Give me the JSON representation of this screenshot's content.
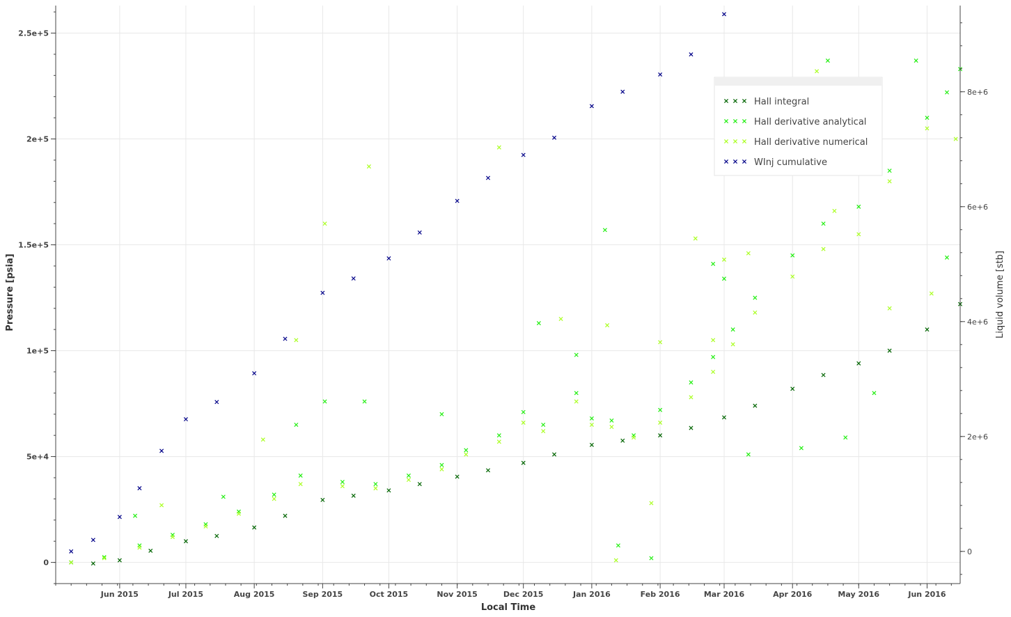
{
  "chart_data": {
    "type": "scatter",
    "xlabel": "Local Time",
    "ylabel": "Pressure [psia]",
    "y2label": "Liquid volume [stb]",
    "x_range": [
      "2015-05-03",
      "2016-06-16"
    ],
    "ylim": [
      -10000,
      263000
    ],
    "y2lim": [
      -560000,
      9500000
    ],
    "x_ticks": [
      "2015-06-01",
      "2015-07-01",
      "2015-08-01",
      "2015-09-01",
      "2015-10-01",
      "2015-11-01",
      "2015-12-01",
      "2016-01-01",
      "2016-02-01",
      "2016-03-01",
      "2016-04-01",
      "2016-05-01",
      "2016-06-01"
    ],
    "x_tick_labels": [
      "Jun 2015",
      "Jul 2015",
      "Aug 2015",
      "Sep 2015",
      "Oct 2015",
      "Nov 2015",
      "Dec 2015",
      "Jan 2016",
      "Feb 2016",
      "Mar 2016",
      "Apr 2016",
      "May 2016",
      "Jun 2016"
    ],
    "y_ticks": [
      0,
      50000,
      100000,
      150000,
      200000,
      250000
    ],
    "y_tick_labels": [
      "0",
      "5e+4",
      "1e+5",
      "1.5e+5",
      "2e+5",
      "2.5e+5"
    ],
    "y2_ticks": [
      0,
      2000000,
      4000000,
      6000000,
      8000000
    ],
    "y2_tick_labels": [
      "0",
      "2e+6",
      "4e+6",
      "6e+6",
      "8e+6"
    ],
    "grid": true,
    "legend_position": "top-right",
    "series": [
      {
        "name": "Hall integral",
        "axis": "left",
        "color": "#006400",
        "marker": "x",
        "points": [
          [
            "2015-05-10",
            0
          ],
          [
            "2015-05-20",
            -500
          ],
          [
            "2015-06-01",
            1000
          ],
          [
            "2015-06-15",
            5500
          ],
          [
            "2015-07-01",
            10000
          ],
          [
            "2015-07-15",
            12500
          ],
          [
            "2015-08-01",
            16500
          ],
          [
            "2015-08-15",
            22000
          ],
          [
            "2015-09-01",
            29500
          ],
          [
            "2015-09-15",
            31500
          ],
          [
            "2015-10-01",
            34000
          ],
          [
            "2015-10-15",
            37000
          ],
          [
            "2015-11-01",
            40500
          ],
          [
            "2015-11-15",
            43500
          ],
          [
            "2015-12-01",
            47000
          ],
          [
            "2015-12-15",
            51000
          ],
          [
            "2016-01-01",
            55500
          ],
          [
            "2016-01-15",
            57500
          ],
          [
            "2016-02-01",
            60000
          ],
          [
            "2016-02-15",
            63500
          ],
          [
            "2016-03-01",
            68500
          ],
          [
            "2016-03-15",
            74000
          ],
          [
            "2016-04-01",
            82000
          ],
          [
            "2016-04-15",
            88500
          ],
          [
            "2016-05-01",
            94000
          ],
          [
            "2016-05-15",
            100000
          ],
          [
            "2016-06-01",
            110000
          ],
          [
            "2016-06-16",
            122000
          ]
        ]
      },
      {
        "name": "Hall derivative analytical",
        "axis": "left",
        "color": "#22ee11",
        "marker": "x",
        "points": [
          [
            "2015-05-10",
            0
          ],
          [
            "2015-05-25",
            2500
          ],
          [
            "2015-06-10",
            8000
          ],
          [
            "2015-06-25",
            13000
          ],
          [
            "2015-07-10",
            18000
          ],
          [
            "2015-07-25",
            24000
          ],
          [
            "2015-08-10",
            32000
          ],
          [
            "2015-08-22",
            41000
          ],
          [
            "2015-09-10",
            38000
          ],
          [
            "2015-09-25",
            37000
          ],
          [
            "2015-10-10",
            41000
          ],
          [
            "2015-10-25",
            46000
          ],
          [
            "2015-11-05",
            53000
          ],
          [
            "2015-11-20",
            60000
          ],
          [
            "2015-12-01",
            71000
          ],
          [
            "2015-12-10",
            65000
          ],
          [
            "2015-12-25",
            80000
          ],
          [
            "2016-01-01",
            68000
          ],
          [
            "2016-01-10",
            67000
          ],
          [
            "2016-01-20",
            60000
          ],
          [
            "2016-02-01",
            72000
          ],
          [
            "2016-02-15",
            85000
          ],
          [
            "2016-02-25",
            97000
          ],
          [
            "2016-03-05",
            110000
          ],
          [
            "2016-03-15",
            125000
          ],
          [
            "2016-04-01",
            145000
          ],
          [
            "2016-04-15",
            160000
          ],
          [
            "2016-05-01",
            168000
          ],
          [
            "2016-05-15",
            185000
          ],
          [
            "2016-06-01",
            210000
          ],
          [
            "2016-06-10",
            222000
          ],
          [
            "2015-06-08",
            22000
          ],
          [
            "2015-07-18",
            31000
          ],
          [
            "2015-08-20",
            65000
          ],
          [
            "2015-09-02",
            76000
          ],
          [
            "2015-09-20",
            76000
          ],
          [
            "2015-10-25",
            70000
          ],
          [
            "2015-12-08",
            113000
          ],
          [
            "2015-12-25",
            98000
          ],
          [
            "2016-01-07",
            157000
          ],
          [
            "2016-01-13",
            8000
          ],
          [
            "2016-01-28",
            2000
          ],
          [
            "2016-02-25",
            141000
          ],
          [
            "2016-03-01",
            134000
          ],
          [
            "2016-03-12",
            51000
          ],
          [
            "2016-04-05",
            54000
          ],
          [
            "2016-04-17",
            237000
          ],
          [
            "2016-04-25",
            59000
          ],
          [
            "2016-05-08",
            80000
          ],
          [
            "2016-05-27",
            237000
          ],
          [
            "2016-06-10",
            144000
          ],
          [
            "2016-06-16",
            233000
          ]
        ]
      },
      {
        "name": "Hall derivative numerical",
        "axis": "left",
        "color": "#aaff22",
        "marker": "x",
        "points": [
          [
            "2015-05-10",
            0
          ],
          [
            "2015-05-25",
            2000
          ],
          [
            "2015-06-10",
            7000
          ],
          [
            "2015-06-25",
            12000
          ],
          [
            "2015-07-10",
            17000
          ],
          [
            "2015-07-25",
            23000
          ],
          [
            "2015-08-10",
            30000
          ],
          [
            "2015-08-22",
            37000
          ],
          [
            "2015-09-10",
            36000
          ],
          [
            "2015-09-25",
            35000
          ],
          [
            "2015-10-10",
            39000
          ],
          [
            "2015-10-25",
            44000
          ],
          [
            "2015-11-05",
            51000
          ],
          [
            "2015-11-20",
            57000
          ],
          [
            "2015-12-01",
            66000
          ],
          [
            "2015-12-10",
            62000
          ],
          [
            "2015-12-25",
            76000
          ],
          [
            "2016-01-01",
            65000
          ],
          [
            "2016-01-10",
            64000
          ],
          [
            "2016-01-20",
            59000
          ],
          [
            "2016-02-01",
            66000
          ],
          [
            "2016-02-15",
            78000
          ],
          [
            "2016-02-25",
            90000
          ],
          [
            "2016-03-05",
            103000
          ],
          [
            "2016-03-15",
            118000
          ],
          [
            "2016-04-01",
            135000
          ],
          [
            "2016-04-15",
            148000
          ],
          [
            "2016-05-01",
            155000
          ],
          [
            "2016-05-15",
            180000
          ],
          [
            "2016-06-01",
            205000
          ],
          [
            "2016-06-14",
            200000
          ],
          [
            "2015-06-20",
            27000
          ],
          [
            "2015-08-05",
            58000
          ],
          [
            "2015-08-20",
            105000
          ],
          [
            "2015-09-02",
            160000
          ],
          [
            "2015-09-22",
            187000
          ],
          [
            "2015-11-20",
            196000
          ],
          [
            "2015-12-18",
            115000
          ],
          [
            "2016-01-08",
            112000
          ],
          [
            "2016-01-12",
            1000
          ],
          [
            "2016-01-28",
            28000
          ],
          [
            "2016-02-01",
            104000
          ],
          [
            "2016-02-17",
            153000
          ],
          [
            "2016-02-25",
            105000
          ],
          [
            "2016-03-01",
            143000
          ],
          [
            "2016-03-12",
            146000
          ],
          [
            "2016-04-12",
            232000
          ],
          [
            "2016-04-20",
            166000
          ],
          [
            "2016-05-15",
            120000
          ],
          [
            "2016-06-03",
            127000
          ]
        ]
      },
      {
        "name": "WInj cumulative",
        "axis": "right",
        "color": "#000088",
        "marker": "x",
        "points": [
          [
            "2015-05-10",
            0
          ],
          [
            "2015-05-20",
            200000
          ],
          [
            "2015-06-01",
            600000
          ],
          [
            "2015-06-10",
            1100000
          ],
          [
            "2015-06-20",
            1750000
          ],
          [
            "2015-07-01",
            2300000
          ],
          [
            "2015-07-15",
            2600000
          ],
          [
            "2015-08-01",
            3100000
          ],
          [
            "2015-08-15",
            3700000
          ],
          [
            "2015-09-01",
            4500000
          ],
          [
            "2015-09-15",
            4750000
          ],
          [
            "2015-10-01",
            5100000
          ],
          [
            "2015-10-15",
            5550000
          ],
          [
            "2015-11-01",
            6100000
          ],
          [
            "2015-11-15",
            6500000
          ],
          [
            "2015-12-01",
            6900000
          ],
          [
            "2015-12-15",
            7200000
          ],
          [
            "2016-01-01",
            7750000
          ],
          [
            "2016-01-15",
            8000000
          ],
          [
            "2016-02-01",
            8300000
          ],
          [
            "2016-02-15",
            8650000
          ],
          [
            "2016-03-01",
            9350000
          ]
        ]
      }
    ]
  }
}
